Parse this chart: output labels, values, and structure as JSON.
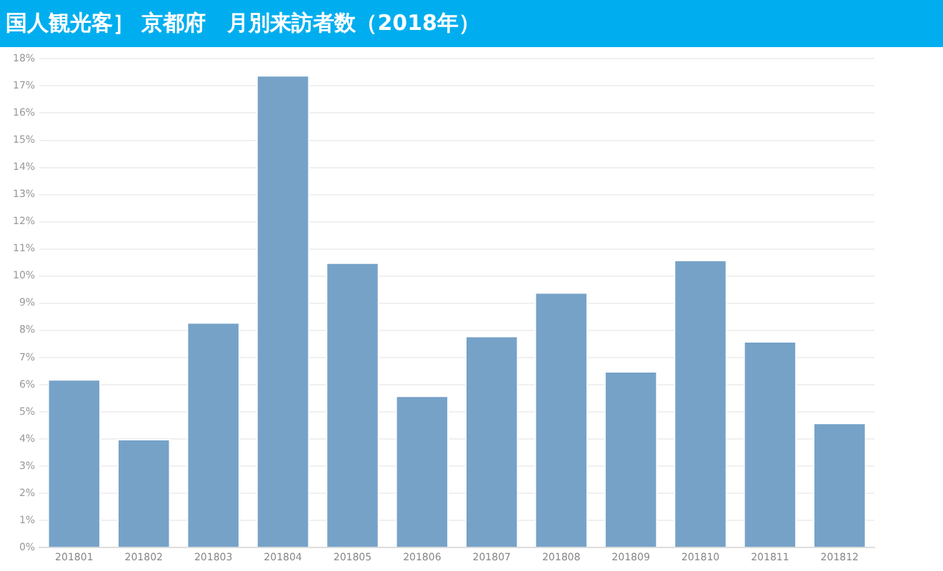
{
  "chart_data": {
    "type": "bar",
    "title": "国人観光客］ 京都府　月別来訪者数（2018年）",
    "categories": [
      "201801",
      "201802",
      "201803",
      "201804",
      "201805",
      "201806",
      "201807",
      "201808",
      "201809",
      "201810",
      "201811",
      "201812"
    ],
    "values": [
      6.2,
      4.0,
      8.3,
      17.4,
      10.5,
      5.6,
      7.8,
      9.4,
      6.5,
      10.6,
      7.6,
      4.6
    ],
    "color": "#76a2c8",
    "ylim": [
      0,
      18
    ],
    "yticks": [
      {
        "value": 0,
        "label": "0%"
      },
      {
        "value": 1,
        "label": "1%"
      },
      {
        "value": 2,
        "label": "2%"
      },
      {
        "value": 3,
        "label": "3%"
      },
      {
        "value": 4,
        "label": "4%"
      },
      {
        "value": 5,
        "label": "5%"
      },
      {
        "value": 6,
        "label": "6%"
      },
      {
        "value": 7,
        "label": "7%"
      },
      {
        "value": 8,
        "label": "8%"
      },
      {
        "value": 9,
        "label": "9%"
      },
      {
        "value": 10,
        "label": "10%"
      },
      {
        "value": 11,
        "label": "11%"
      },
      {
        "value": 12,
        "label": "12%"
      },
      {
        "value": 13,
        "label": "13%"
      },
      {
        "value": 14,
        "label": "14%"
      },
      {
        "value": 15,
        "label": "15%"
      },
      {
        "value": 16,
        "label": "16%"
      },
      {
        "value": 17,
        "label": "17%"
      },
      {
        "value": 18,
        "label": "18%"
      }
    ],
    "grid": "y",
    "legend": false
  }
}
